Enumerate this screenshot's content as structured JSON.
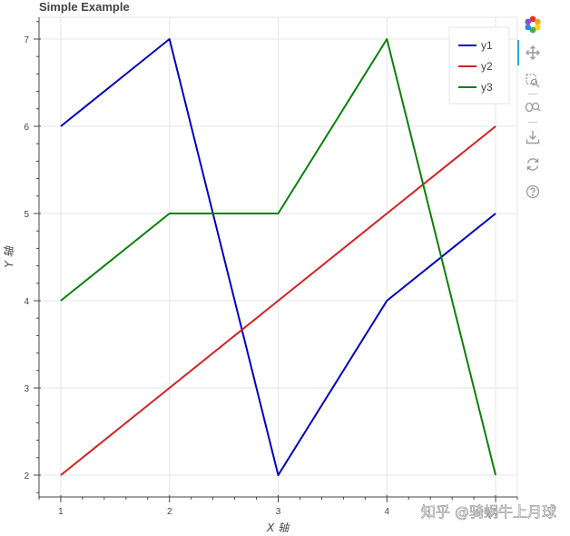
{
  "chart_data": {
    "type": "line",
    "title": "Simple Example",
    "xlabel": "X 轴",
    "ylabel": "Y 轴",
    "x": [
      1,
      2,
      3,
      4,
      5
    ],
    "xlim": [
      0.8,
      5.2
    ],
    "ylim": [
      1.75,
      7.25
    ],
    "xticks": [
      1,
      2,
      3,
      4,
      5
    ],
    "yticks": [
      2,
      3,
      4,
      5,
      6,
      7
    ],
    "grid": true,
    "legend_position": "top-right",
    "series": [
      {
        "name": "y1",
        "values": [
          6,
          7,
          2,
          4,
          5
        ],
        "color": "#0000c0"
      },
      {
        "name": "y2",
        "values": [
          2,
          3,
          4,
          5,
          6
        ],
        "color": "#d62020"
      },
      {
        "name": "y3",
        "values": [
          4,
          5,
          5,
          7,
          2
        ],
        "color": "#0a800a"
      }
    ]
  },
  "watermark": "知乎 @骑蜗牛上月球",
  "toolbar": {
    "icons": [
      "bokeh-logo-icon",
      "pan-icon",
      "box-zoom-icon",
      "wheel-zoom-icon",
      "save-icon",
      "reset-icon",
      "help-icon"
    ]
  }
}
